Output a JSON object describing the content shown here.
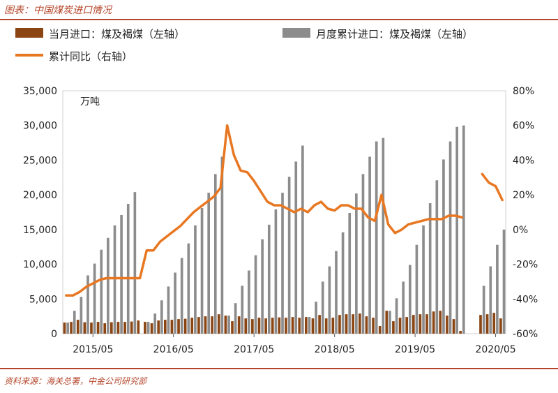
{
  "figure": {
    "title": "图表：中国煤炭进口情况",
    "source": "资料来源：海关总署，中金公司研究部",
    "accent_color": "#b5462b"
  },
  "chart_data": {
    "type": "bar",
    "unit_label": "万吨",
    "x_tick_labels": [
      "2015/05",
      "2016/05",
      "2017/05",
      "2018/05",
      "2019/05",
      "2020/05"
    ],
    "left_axis": {
      "ylim": [
        0,
        35000
      ],
      "ticks": [
        "0",
        "5,000",
        "10,000",
        "15,000",
        "20,000",
        "25,000",
        "30,000",
        "35,000"
      ]
    },
    "right_axis": {
      "ylim": [
        -60,
        80
      ],
      "ticks": [
        "-60%",
        "-40%",
        "-20%",
        "0%",
        "20%",
        "40%",
        "60%",
        "80%"
      ]
    },
    "legend": [
      {
        "name": "当月进口：煤及褐煤（左轴）",
        "color": "#8b4513",
        "kind": "bar"
      },
      {
        "name": "月度累计进口：煤及褐煤（左轴）",
        "color": "#8c8c8c",
        "kind": "bar"
      },
      {
        "name": "累计同比（右轴）",
        "color": "#e87722",
        "kind": "line"
      }
    ],
    "months": [
      "2015/01",
      "2015/02",
      "2015/03",
      "2015/04",
      "2015/05",
      "2015/06",
      "2015/07",
      "2015/08",
      "2015/09",
      "2015/10",
      "2015/11",
      "2015/12",
      "2016/01",
      "2016/02",
      "2016/03",
      "2016/04",
      "2016/05",
      "2016/06",
      "2016/07",
      "2016/08",
      "2016/09",
      "2016/10",
      "2016/11",
      "2016/12",
      "2017/01",
      "2017/02",
      "2017/03",
      "2017/04",
      "2017/05",
      "2017/06",
      "2017/07",
      "2017/08",
      "2017/09",
      "2017/10",
      "2017/11",
      "2017/12",
      "2018/01",
      "2018/02",
      "2018/03",
      "2018/04",
      "2018/05",
      "2018/06",
      "2018/07",
      "2018/08",
      "2018/09",
      "2018/10",
      "2018/11",
      "2018/12",
      "2019/01",
      "2019/02",
      "2019/03",
      "2019/04",
      "2019/05",
      "2019/06",
      "2019/07",
      "2019/08",
      "2019/09",
      "2019/10",
      "2019/11",
      "2019/12",
      "2020/01",
      "2020/02",
      "2020/03",
      "2020/04",
      "2020/05",
      "2020/06"
    ],
    "series": [
      {
        "name": "当月进口：煤及褐煤（左轴）",
        "axis": "left",
        "color": "#8b4513",
        "values": [
          1600,
          1700,
          2000,
          1650,
          1600,
          1700,
          1500,
          1650,
          1700,
          1700,
          1750,
          1900,
          1700,
          1500,
          1900,
          2000,
          2000,
          2100,
          2150,
          2300,
          2400,
          2500,
          2500,
          2800,
          2600,
          1800,
          2500,
          2200,
          2100,
          2300,
          2200,
          2300,
          2350,
          2300,
          2400,
          2300,
          2400,
          2200,
          2700,
          2200,
          2300,
          2700,
          2800,
          2800,
          2900,
          2500,
          2300,
          1100,
          3300,
          1800,
          2300,
          2400,
          2700,
          2800,
          2800,
          3200,
          3300,
          2600,
          2100,
          400,
          null,
          null,
          2700,
          2800,
          3000,
          2200
        ]
      },
      {
        "name": "月度累计进口：煤及褐煤（左轴）",
        "axis": "left",
        "color": "#8c8c8c",
        "values": [
          1600,
          3300,
          5300,
          8400,
          10100,
          12100,
          13800,
          15600,
          17100,
          18700,
          20400,
          null,
          1700,
          2900,
          4800,
          6800,
          8800,
          10900,
          13000,
          15600,
          18100,
          20300,
          23000,
          25500,
          2600,
          4400,
          6900,
          9100,
          11300,
          13600,
          15700,
          17900,
          20300,
          22600,
          24800,
          27100,
          2400,
          4600,
          7500,
          9700,
          11900,
          14600,
          17400,
          20200,
          23000,
          25500,
          27700,
          28200,
          3300,
          5100,
          7500,
          9900,
          12800,
          15600,
          18800,
          22100,
          25100,
          27700,
          29800,
          30000,
          null,
          null,
          6900,
          9700,
          12800,
          15000
        ]
      },
      {
        "name": "累计同比（右轴）",
        "axis": "right",
        "color": "#e87722",
        "values": [
          -38,
          -38,
          -36,
          -33,
          -31,
          -29,
          -28,
          -28,
          -28,
          -28,
          -28,
          -28,
          -12,
          -12,
          -7,
          -4,
          -1,
          2,
          6,
          10,
          13,
          16,
          19,
          24,
          60,
          43,
          34,
          33,
          28,
          22,
          16,
          14,
          14,
          12,
          10,
          12,
          10,
          14,
          16,
          12,
          11,
          14,
          14,
          12,
          12,
          7,
          5,
          20,
          3,
          -2,
          0,
          3,
          4,
          5,
          6,
          6,
          6,
          8,
          8,
          7,
          null,
          null,
          32,
          27,
          25,
          17
        ]
      }
    ]
  }
}
